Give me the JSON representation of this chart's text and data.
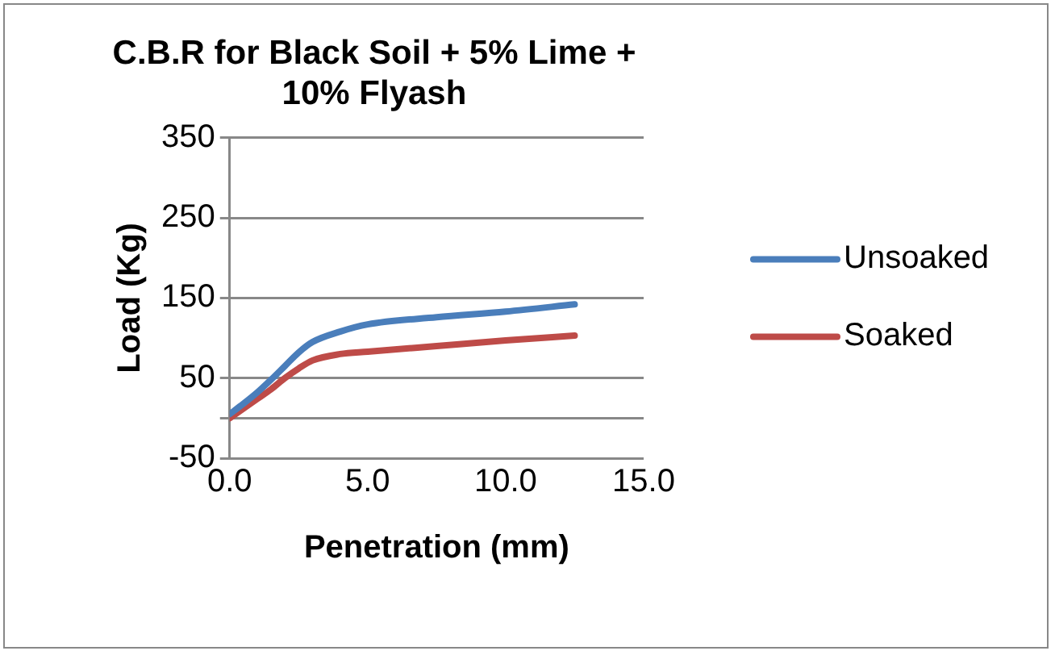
{
  "chart_data": {
    "type": "line",
    "title": "C.B.R for Black Soil + 5% Lime + 10% Flyash",
    "xlabel": "Penetration (mm)",
    "ylabel": "Load (Kg)",
    "x": [
      0,
      0.5,
      1,
      1.5,
      2,
      2.5,
      3,
      4,
      5,
      7.5,
      10,
      12.5
    ],
    "series": [
      {
        "name": "Unsoaked",
        "color": "#4a7ebb",
        "values": [
          5,
          18,
          32,
          48,
          65,
          82,
          95,
          108,
          117,
          126,
          133,
          142
        ]
      },
      {
        "name": "Soaked",
        "color": "#be4b48",
        "values": [
          0,
          12,
          24,
          36,
          50,
          62,
          72,
          80,
          83,
          90,
          97,
          103
        ]
      }
    ],
    "xlim": [
      0,
      15
    ],
    "xticks": [
      {
        "value": 0,
        "label": "0.0"
      },
      {
        "value": 5,
        "label": "5.0"
      },
      {
        "value": 10,
        "label": "10.0"
      },
      {
        "value": 15,
        "label": "15.0"
      }
    ],
    "ylim": [
      -50,
      350
    ],
    "yticks": [
      -50,
      {
        "value": 0,
        "label": null
      },
      50,
      150,
      250,
      350
    ],
    "grid": "y",
    "legend": "right",
    "marker": "none",
    "line_style": "solid"
  }
}
